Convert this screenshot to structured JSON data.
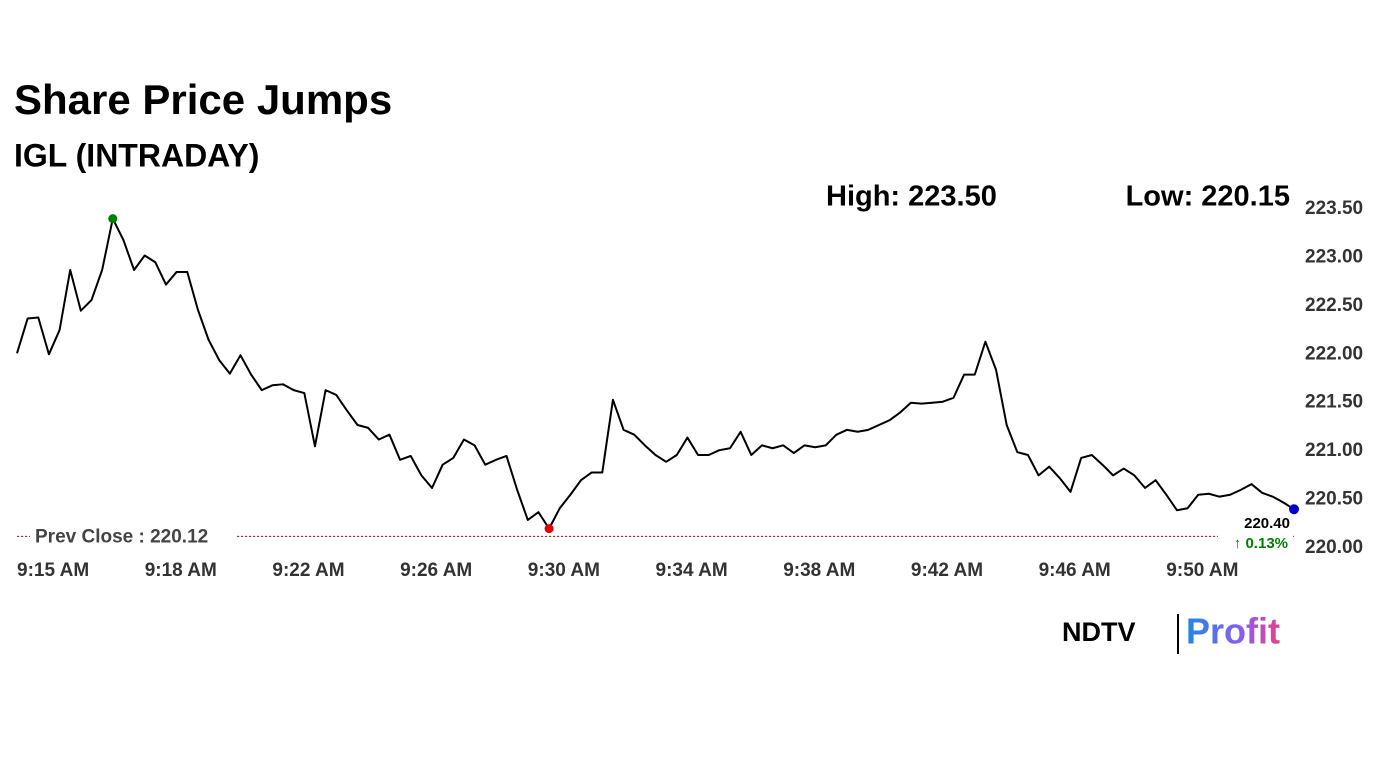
{
  "chart_data": {
    "type": "line",
    "title": "Share Price Jumps",
    "subtitle": "IGL (INTRADAY)",
    "high_text": "High: 223.50",
    "low_text": "Low: 220.15",
    "prev_close": {
      "value": 220.12,
      "label": "Prev Close : 220.12"
    },
    "last_label": "220.40",
    "change_label": "↑ 0.13%",
    "line_color": "#000000",
    "high_color": "#008000",
    "low_color": "#e00000",
    "last_color": "#0000cc",
    "prev_close_color": "#cc0000",
    "change_color": "#008000",
    "ylim": [
      220,
      223.5
    ],
    "yticks": [
      {
        "value": 220,
        "label": "220.00"
      },
      {
        "value": 220.5,
        "label": "220.50"
      },
      {
        "value": 221,
        "label": "221.00"
      },
      {
        "value": 221.5,
        "label": "221.50"
      },
      {
        "value": 222,
        "label": "222.00"
      },
      {
        "value": 222.5,
        "label": "222.50"
      },
      {
        "value": 223,
        "label": "223.00"
      },
      {
        "value": 223.5,
        "label": "223.50"
      }
    ],
    "categories": [
      "9:15 AM",
      null,
      null,
      null,
      null,
      null,
      null,
      null,
      null,
      null,
      null,
      null,
      "9:18 AM",
      null,
      null,
      null,
      null,
      null,
      null,
      null,
      null,
      null,
      null,
      null,
      "9:22 AM",
      null,
      null,
      null,
      null,
      null,
      null,
      null,
      null,
      null,
      null,
      null,
      "9:26 AM",
      null,
      null,
      null,
      null,
      null,
      null,
      null,
      null,
      null,
      null,
      null,
      "9:30 AM",
      null,
      null,
      null,
      null,
      null,
      null,
      null,
      null,
      null,
      null,
      null,
      "9:34 AM",
      null,
      null,
      null,
      null,
      null,
      null,
      null,
      null,
      null,
      null,
      null,
      "9:38 AM",
      null,
      null,
      null,
      null,
      null,
      null,
      null,
      null,
      null,
      null,
      null,
      "9:42 AM",
      null,
      null,
      null,
      null,
      null,
      null,
      null,
      null,
      null,
      null,
      null,
      "9:46 AM",
      null,
      null,
      null,
      null,
      null,
      null,
      null,
      null,
      null,
      null,
      null,
      "9:50 AM",
      null,
      null,
      null,
      null,
      null,
      null,
      null,
      null,
      null,
      null,
      null,
      null
    ],
    "values": [
      222.01,
      222.37,
      222.38,
      222.0,
      222.25,
      222.87,
      222.45,
      222.56,
      222.87,
      223.4,
      223.18,
      222.87,
      223.02,
      222.95,
      222.72,
      222.85,
      222.85,
      222.46,
      222.15,
      221.94,
      221.8,
      221.99,
      221.79,
      221.63,
      221.68,
      221.69,
      221.63,
      221.6,
      221.05,
      221.63,
      221.58,
      221.42,
      221.27,
      221.24,
      221.12,
      221.17,
      220.91,
      220.95,
      220.75,
      220.62,
      220.86,
      220.93,
      221.12,
      221.06,
      220.86,
      220.91,
      220.95,
      220.6,
      220.29,
      220.37,
      220.2,
      220.41,
      220.55,
      220.7,
      220.78,
      220.78,
      221.53,
      221.22,
      221.17,
      221.06,
      220.96,
      220.89,
      220.96,
      221.14,
      220.96,
      220.96,
      221.01,
      221.03,
      221.2,
      220.96,
      221.06,
      221.03,
      221.06,
      220.98,
      221.06,
      221.04,
      221.06,
      221.17,
      221.22,
      221.2,
      221.22,
      221.27,
      221.32,
      221.4,
      221.5,
      221.49,
      221.5,
      221.51,
      221.55,
      221.79,
      221.79,
      222.13,
      221.84,
      221.27,
      220.99,
      220.96,
      220.75,
      220.84,
      220.72,
      220.58,
      220.93,
      220.96,
      220.86,
      220.75,
      220.82,
      220.75,
      220.62,
      220.7,
      220.55,
      220.39,
      220.41,
      220.55,
      220.56,
      220.53,
      220.55,
      220.6,
      220.66,
      220.57,
      220.53,
      220.47,
      220.4
    ]
  },
  "logo": {
    "left": "NDTV",
    "right": "Profit"
  }
}
